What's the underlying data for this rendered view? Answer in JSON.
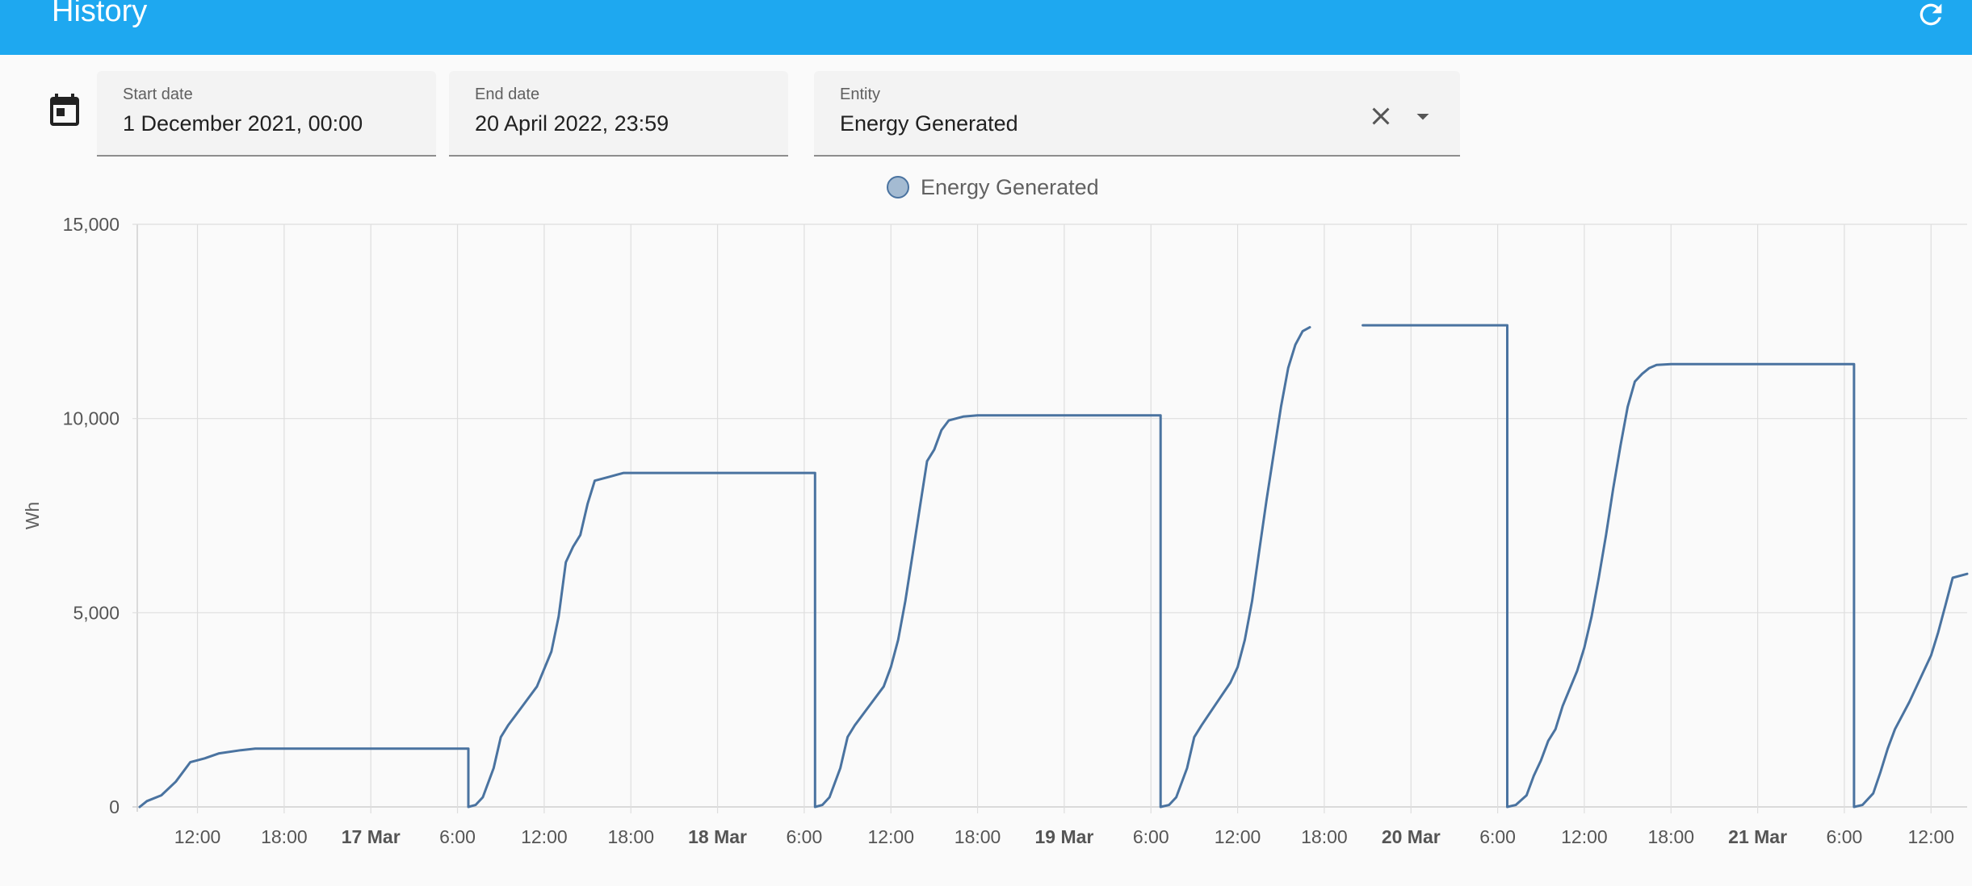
{
  "header": {
    "title": "History",
    "refresh_icon": "refresh-icon",
    "color": "#1ea8f0"
  },
  "filters": {
    "calendar_icon": "calendar-icon",
    "start_date": {
      "label": "Start date",
      "value": "1 December 2021, 00:00"
    },
    "end_date": {
      "label": "End date",
      "value": "20 April 2022, 23:59"
    },
    "entity": {
      "label": "Entity",
      "value": "Energy Generated",
      "clear_icon": "close-icon",
      "dropdown_icon": "caret-down-icon"
    }
  },
  "chart_data": {
    "type": "line",
    "title": "",
    "xlabel": "",
    "ylabel": "Wh",
    "ylim": [
      0,
      15000
    ],
    "yticks": [
      0,
      5000,
      10000,
      15000
    ],
    "ytick_labels": [
      "0",
      "5,000",
      "10,000",
      "15,000"
    ],
    "xlim": [
      "16 Mar 07:50",
      "21 Mar 14:30"
    ],
    "xticks": [
      {
        "time": "16 Mar 12:00",
        "label": "12:00",
        "bold": false
      },
      {
        "time": "16 Mar 18:00",
        "label": "18:00",
        "bold": false
      },
      {
        "time": "17 Mar 00:00",
        "label": "17 Mar",
        "bold": true
      },
      {
        "time": "17 Mar 06:00",
        "label": "6:00",
        "bold": false
      },
      {
        "time": "17 Mar 12:00",
        "label": "12:00",
        "bold": false
      },
      {
        "time": "17 Mar 18:00",
        "label": "18:00",
        "bold": false
      },
      {
        "time": "18 Mar 00:00",
        "label": "18 Mar",
        "bold": true
      },
      {
        "time": "18 Mar 06:00",
        "label": "6:00",
        "bold": false
      },
      {
        "time": "18 Mar 12:00",
        "label": "12:00",
        "bold": false
      },
      {
        "time": "18 Mar 18:00",
        "label": "18:00",
        "bold": false
      },
      {
        "time": "19 Mar 00:00",
        "label": "19 Mar",
        "bold": true
      },
      {
        "time": "19 Mar 06:00",
        "label": "6:00",
        "bold": false
      },
      {
        "time": "19 Mar 12:00",
        "label": "12:00",
        "bold": false
      },
      {
        "time": "19 Mar 18:00",
        "label": "18:00",
        "bold": false
      },
      {
        "time": "20 Mar 00:00",
        "label": "20 Mar",
        "bold": true
      },
      {
        "time": "20 Mar 06:00",
        "label": "6:00",
        "bold": false
      },
      {
        "time": "20 Mar 12:00",
        "label": "12:00",
        "bold": false
      },
      {
        "time": "20 Mar 18:00",
        "label": "18:00",
        "bold": false
      },
      {
        "time": "21 Mar 00:00",
        "label": "21 Mar",
        "bold": true
      },
      {
        "time": "21 Mar 06:00",
        "label": "6:00",
        "bold": false
      },
      {
        "time": "21 Mar 12:00",
        "label": "12:00",
        "bold": false
      }
    ],
    "grid": true,
    "legend": "top-center",
    "series": [
      {
        "name": "Energy Generated",
        "color": "#4a73a0",
        "segments": [
          [
            [
              "16 Mar 08:00",
              0
            ],
            [
              "16 Mar 08:30",
              150
            ],
            [
              "16 Mar 09:30",
              300
            ],
            [
              "16 Mar 10:30",
              650
            ],
            [
              "16 Mar 11:30",
              1150
            ],
            [
              "16 Mar 12:30",
              1250
            ],
            [
              "16 Mar 13:30",
              1380
            ],
            [
              "16 Mar 15:00",
              1460
            ],
            [
              "16 Mar 16:00",
              1500
            ],
            [
              "17 Mar 06:45",
              1500
            ],
            [
              "17 Mar 06:45",
              0
            ],
            [
              "17 Mar 07:15",
              50
            ],
            [
              "17 Mar 07:45",
              250
            ],
            [
              "17 Mar 08:30",
              1000
            ],
            [
              "17 Mar 09:00",
              1800
            ],
            [
              "17 Mar 09:30",
              2100
            ],
            [
              "17 Mar 10:30",
              2600
            ],
            [
              "17 Mar 11:30",
              3100
            ],
            [
              "17 Mar 12:30",
              4000
            ],
            [
              "17 Mar 13:00",
              4900
            ],
            [
              "17 Mar 13:30",
              6300
            ],
            [
              "17 Mar 14:00",
              6700
            ],
            [
              "17 Mar 14:30",
              7000
            ],
            [
              "17 Mar 15:00",
              7800
            ],
            [
              "17 Mar 15:30",
              8400
            ],
            [
              "17 Mar 16:30",
              8500
            ],
            [
              "17 Mar 17:30",
              8600
            ],
            [
              "18 Mar 06:45",
              8600
            ],
            [
              "18 Mar 06:45",
              0
            ],
            [
              "18 Mar 07:15",
              50
            ],
            [
              "18 Mar 07:45",
              250
            ],
            [
              "18 Mar 08:30",
              1000
            ],
            [
              "18 Mar 09:00",
              1800
            ],
            [
              "18 Mar 09:30",
              2100
            ],
            [
              "18 Mar 10:30",
              2600
            ],
            [
              "18 Mar 11:30",
              3100
            ],
            [
              "18 Mar 12:00",
              3600
            ],
            [
              "18 Mar 12:30",
              4300
            ],
            [
              "18 Mar 13:00",
              5300
            ],
            [
              "18 Mar 13:30",
              6500
            ],
            [
              "18 Mar 14:00",
              7700
            ],
            [
              "18 Mar 14:30",
              8900
            ],
            [
              "18 Mar 15:00",
              9200
            ],
            [
              "18 Mar 15:30",
              9700
            ],
            [
              "18 Mar 16:00",
              9950
            ],
            [
              "18 Mar 17:00",
              10050
            ],
            [
              "18 Mar 18:00",
              10080
            ],
            [
              "19 Mar 06:40",
              10080
            ],
            [
              "19 Mar 06:40",
              0
            ],
            [
              "19 Mar 07:15",
              50
            ],
            [
              "19 Mar 07:45",
              250
            ],
            [
              "19 Mar 08:30",
              1000
            ],
            [
              "19 Mar 09:00",
              1800
            ],
            [
              "19 Mar 09:30",
              2100
            ],
            [
              "19 Mar 10:30",
              2650
            ],
            [
              "19 Mar 11:30",
              3200
            ],
            [
              "19 Mar 12:00",
              3600
            ],
            [
              "19 Mar 12:30",
              4300
            ],
            [
              "19 Mar 13:00",
              5300
            ],
            [
              "19 Mar 13:30",
              6600
            ],
            [
              "19 Mar 14:00",
              7900
            ],
            [
              "19 Mar 14:30",
              9100
            ],
            [
              "19 Mar 15:00",
              10300
            ],
            [
              "19 Mar 15:30",
              11300
            ],
            [
              "19 Mar 16:00",
              11900
            ],
            [
              "19 Mar 16:30",
              12250
            ],
            [
              "19 Mar 17:00",
              12350
            ]
          ],
          [
            [
              "19 Mar 20:40",
              12400
            ],
            [
              "20 Mar 06:40",
              12400
            ],
            [
              "20 Mar 06:40",
              0
            ],
            [
              "20 Mar 07:15",
              50
            ],
            [
              "20 Mar 08:00",
              300
            ],
            [
              "20 Mar 08:30",
              800
            ],
            [
              "20 Mar 09:00",
              1200
            ],
            [
              "20 Mar 09:30",
              1700
            ],
            [
              "20 Mar 10:00",
              2000
            ],
            [
              "20 Mar 10:30",
              2600
            ],
            [
              "20 Mar 11:30",
              3500
            ],
            [
              "20 Mar 12:00",
              4100
            ],
            [
              "20 Mar 12:30",
              4900
            ],
            [
              "20 Mar 13:00",
              5900
            ],
            [
              "20 Mar 13:30",
              7000
            ],
            [
              "20 Mar 14:00",
              8200
            ],
            [
              "20 Mar 14:30",
              9300
            ],
            [
              "20 Mar 15:00",
              10300
            ],
            [
              "20 Mar 15:30",
              10950
            ],
            [
              "20 Mar 16:00",
              11150
            ],
            [
              "20 Mar 16:30",
              11300
            ],
            [
              "20 Mar 17:00",
              11380
            ],
            [
              "20 Mar 18:00",
              11400
            ],
            [
              "21 Mar 06:40",
              11400
            ],
            [
              "21 Mar 06:40",
              0
            ],
            [
              "21 Mar 07:15",
              50
            ],
            [
              "21 Mar 08:00",
              350
            ],
            [
              "21 Mar 08:30",
              900
            ],
            [
              "21 Mar 09:00",
              1500
            ],
            [
              "21 Mar 09:30",
              2000
            ],
            [
              "21 Mar 10:30",
              2700
            ],
            [
              "21 Mar 11:30",
              3500
            ],
            [
              "21 Mar 12:00",
              3900
            ],
            [
              "21 Mar 12:30",
              4500
            ],
            [
              "21 Mar 13:00",
              5200
            ],
            [
              "21 Mar 13:30",
              5900
            ],
            [
              "21 Mar 14:30",
              6000
            ]
          ]
        ]
      }
    ]
  }
}
